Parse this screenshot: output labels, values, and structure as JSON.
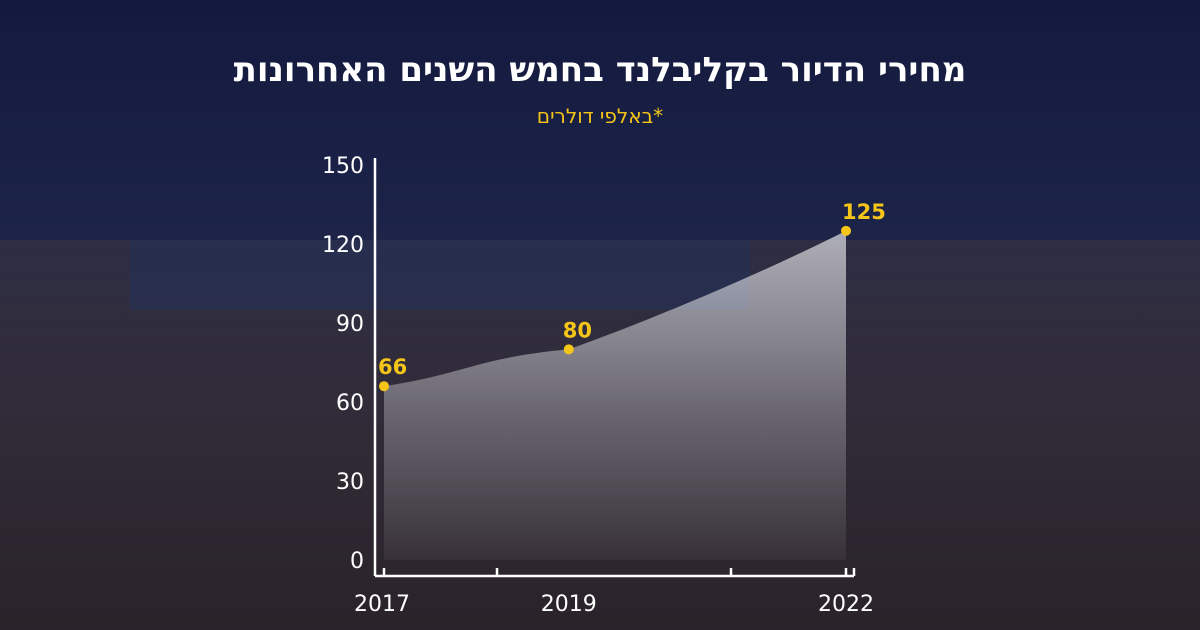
{
  "colors": {
    "background": "#1b2040",
    "accent": "#f5c518",
    "text": "#ffffff",
    "area_fill": "#ffffff"
  },
  "header": {
    "title": "מחירי הדיור בקליבלנד בחמש השנים האחרונות",
    "subtitle": "*באלפי דולרים"
  },
  "chart_data": {
    "type": "area",
    "title": "מחירי הדיור בקליבלנד בחמש השנים האחרונות",
    "subtitle": "*באלפי דולרים",
    "x": [
      2017,
      2019,
      2022
    ],
    "x_tick_labels": [
      "2017",
      "2019",
      "2022"
    ],
    "values": [
      66,
      80,
      125
    ],
    "data_labels": [
      "66",
      "80",
      "125"
    ],
    "ylim": [
      0,
      150
    ],
    "y_ticks": [
      0,
      30,
      60,
      90,
      120,
      150
    ],
    "y_tick_labels": [
      "0",
      "30",
      "60",
      "90",
      "120",
      "150"
    ],
    "grid": false,
    "legend": "none"
  }
}
